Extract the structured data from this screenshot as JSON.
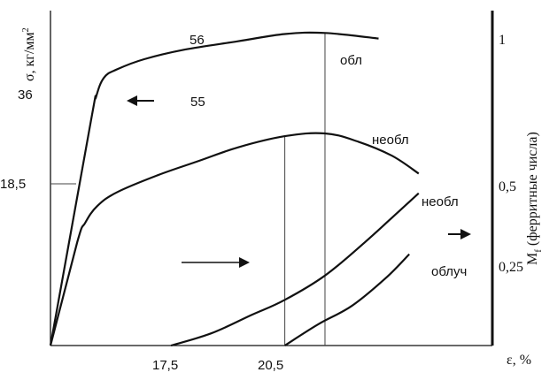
{
  "chart_data": {
    "type": "line",
    "xlabel": "ε, %",
    "ylabel_left": "σ, кг/мм",
    "ylabel_left_sup": "2",
    "ylabel_right": "M",
    "ylabel_right_sub": "f",
    "ylabel_right_rest": " (ферритные числа)",
    "x_ticks": [
      "17,5",
      "20,5"
    ],
    "x_tick_values": [
      17.5,
      20.5
    ],
    "y_left_ticks": [
      "18,5",
      "36"
    ],
    "y_left_tick_values": [
      18.5,
      36
    ],
    "y_right_ticks": [
      "0,25",
      "0,5",
      "1"
    ],
    "y_right_tick_values": [
      0.25,
      0.5,
      1
    ],
    "peak_labels": [
      "56",
      "55"
    ],
    "xlim": [
      0,
      33
    ],
    "ylim_left": [
      0,
      60
    ],
    "ylim_right": [
      0,
      1.1
    ],
    "series": [
      {
        "name": "обл",
        "axis": "left",
        "color": "#111111",
        "x": [
          0,
          3,
          3.4,
          4,
          5,
          7,
          10,
          14,
          17.5,
          20.5,
          24.5
        ],
        "y": [
          0,
          40,
          44.5,
          48,
          49.5,
          51.3,
          53,
          54.5,
          55.8,
          56,
          55
        ]
      },
      {
        "name": "необл",
        "axis": "left",
        "color": "#111111",
        "x": [
          0,
          2,
          2.6,
          3.5,
          5,
          8,
          11,
          14,
          17.5,
          20.5,
          23,
          25.5,
          27.5
        ],
        "y": [
          0,
          18.5,
          22,
          25,
          27.5,
          30.5,
          33,
          35.5,
          37.5,
          38,
          36.5,
          34,
          30.8
        ]
      },
      {
        "name": "необл",
        "axis": "right",
        "color": "#111111",
        "x": [
          9,
          12,
          15,
          17.5,
          20.5,
          23.5,
          26,
          27.5
        ],
        "y": [
          0,
          0.04,
          0.1,
          0.15,
          0.23,
          0.34,
          0.44,
          0.5
        ]
      },
      {
        "name": "облуч",
        "axis": "right",
        "color": "#111111",
        "x": [
          17.5,
          20,
          22.5,
          25,
          26.8
        ],
        "y": [
          0,
          0.07,
          0.13,
          0.22,
          0.3
        ]
      }
    ],
    "vertical_lines_x": [
      17.5,
      20.5
    ],
    "grid": false,
    "legend": "none",
    "arrows": [
      "left-pointing arrow",
      "right-pointing arrow"
    ]
  }
}
